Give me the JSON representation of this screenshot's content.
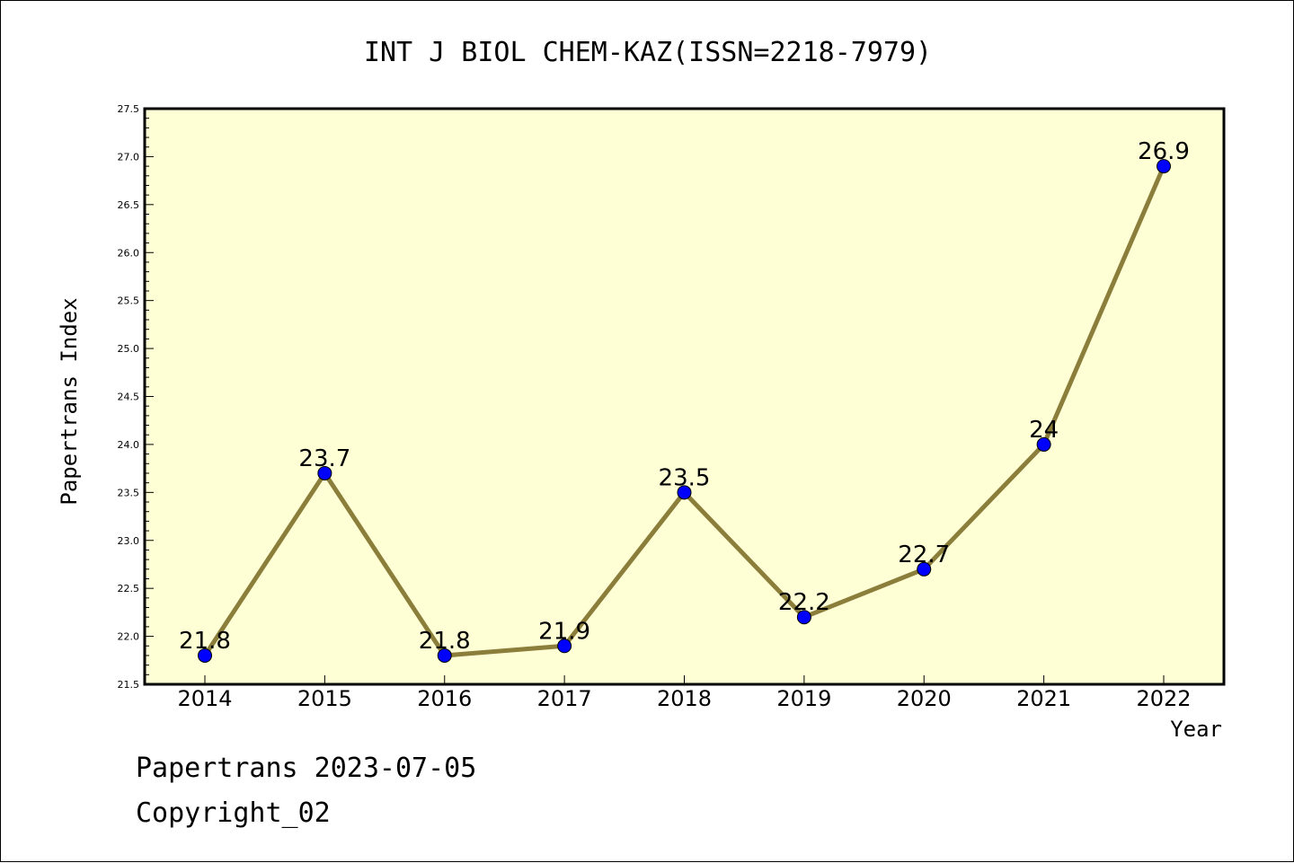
{
  "chart_data": {
    "type": "line",
    "title": "INT J BIOL CHEM-KAZ(ISSN=2218-7979)",
    "xlabel": "Year",
    "ylabel": "Papertrans Index",
    "categories": [
      "2014",
      "2015",
      "2016",
      "2017",
      "2018",
      "2019",
      "2020",
      "2021",
      "2022"
    ],
    "values": [
      21.8,
      23.7,
      21.8,
      21.9,
      23.5,
      22.2,
      22.7,
      24,
      26.9
    ],
    "data_labels": [
      "21.8",
      "23.7",
      "21.8",
      "21.9",
      "23.5",
      "22.2",
      "22.7",
      "24",
      "26.9"
    ],
    "ylim": [
      21.5,
      27.5
    ],
    "yticks": [
      "21.5",
      "22.0",
      "22.5",
      "23.0",
      "23.5",
      "24.0",
      "24.5",
      "25.0",
      "25.5",
      "26.0",
      "26.5",
      "27.0",
      "27.5"
    ],
    "grid": false,
    "colors": {
      "plot_background": "#FFFFD5",
      "line": "#8B7D3A",
      "marker": "#0000FF"
    }
  },
  "footer": {
    "date_line": "Papertrans 2023-07-05",
    "copyright": "Copyright_02"
  }
}
